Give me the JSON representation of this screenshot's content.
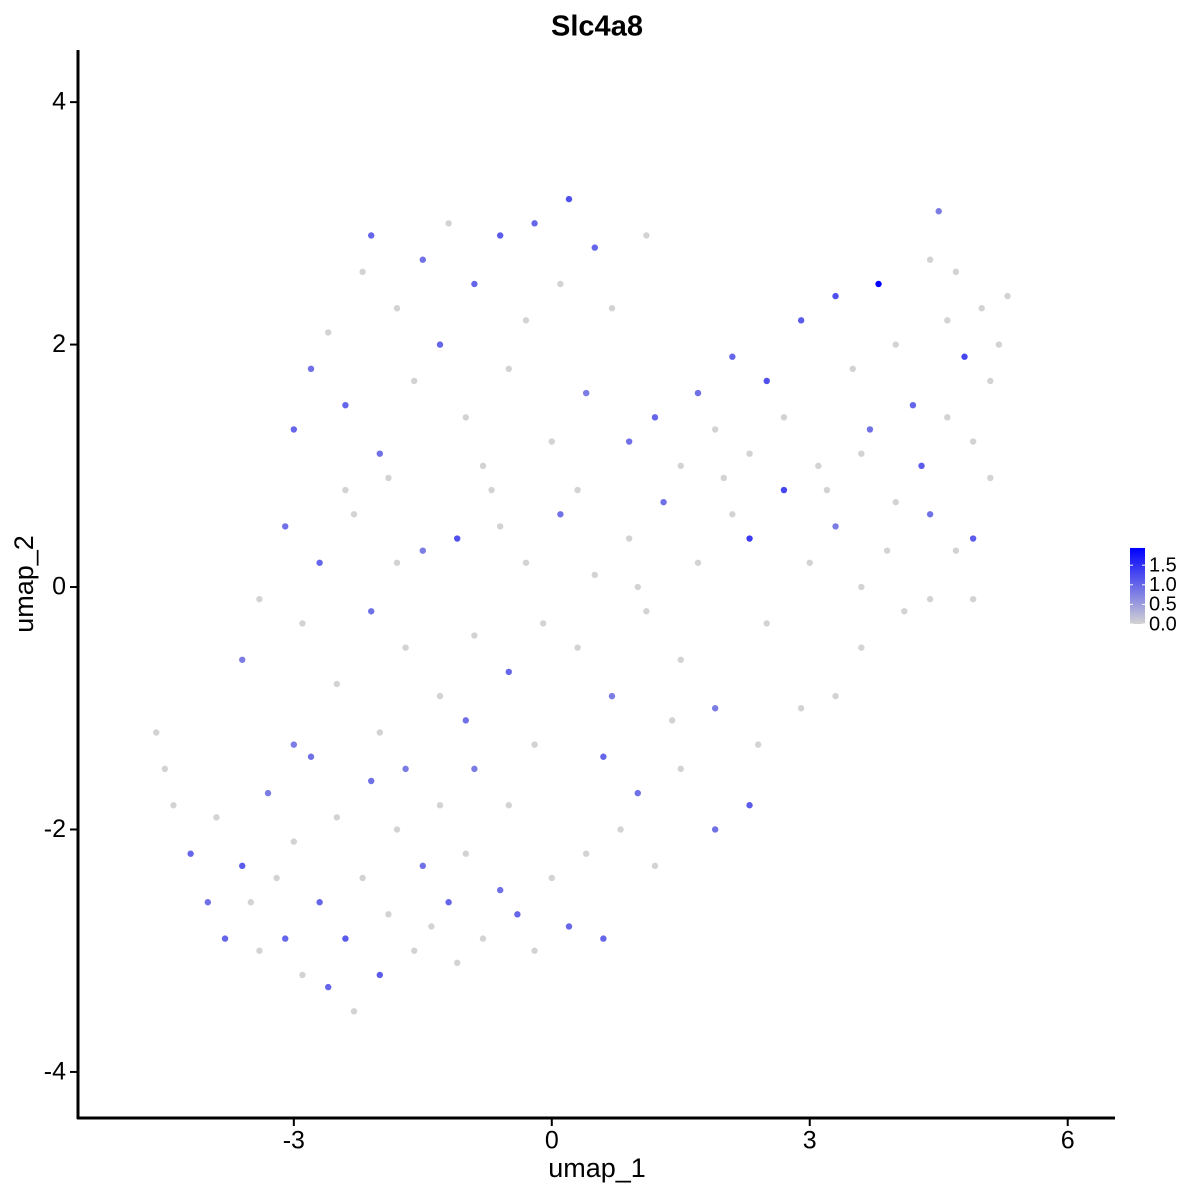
{
  "chart_data": {
    "type": "scatter",
    "title": "Slc4a8",
    "x_label": "umap_1",
    "y_label": "umap_2",
    "x": [
      -4.6,
      -4.5,
      -4.4,
      -4.2,
      -4.0,
      -3.9,
      -3.8,
      -3.6,
      -3.5,
      -3.4,
      -3.3,
      -3.2,
      -3.1,
      -3.0,
      -2.9,
      -2.8,
      -2.7,
      -2.6,
      -2.5,
      -2.4,
      -2.3,
      -2.2,
      -2.1,
      -2.0,
      -1.9,
      -1.8,
      -1.7,
      -1.6,
      -1.5,
      -1.4,
      -1.3,
      -1.2,
      -1.1,
      -1.0,
      -0.9,
      -0.8,
      -0.6,
      -0.5,
      -0.4,
      -0.2,
      0.0,
      0.2,
      0.4,
      0.6,
      0.8,
      1.0,
      1.2,
      1.5,
      1.9,
      2.3,
      2.4,
      2.9,
      3.3,
      3.6,
      -3.6,
      -3.4,
      -3.1,
      -2.9,
      -2.7,
      -2.5,
      -2.3,
      -2.1,
      -1.9,
      -1.7,
      -1.5,
      -1.3,
      -1.1,
      -0.9,
      -0.7,
      -0.5,
      -0.3,
      -0.1,
      0.1,
      0.3,
      0.5,
      0.7,
      0.9,
      1.1,
      1.3,
      1.5,
      1.7,
      1.9,
      2.1,
      2.3,
      2.5,
      2.7,
      3.0,
      3.3,
      3.6,
      3.9,
      4.1,
      4.4,
      4.7,
      4.9,
      4.4,
      -0.2,
      -1.0,
      -2.0,
      0.6,
      1.4,
      -3.0,
      -3.0,
      -2.8,
      -2.6,
      -2.4,
      -2.2,
      -2.1,
      -2.0,
      -1.8,
      -1.6,
      -1.5,
      -1.3,
      -1.2,
      -1.0,
      -0.9,
      -0.8,
      -0.6,
      -0.5,
      -0.3,
      -0.2,
      0.0,
      0.2,
      0.1,
      0.4,
      0.5,
      0.7,
      0.9,
      1.1,
      0.3,
      -0.6,
      -2.4,
      -1.8,
      1.2,
      1.5,
      1.7,
      1.9,
      2.1,
      2.3,
      2.5,
      2.7,
      2.9,
      3.1,
      3.3,
      3.5,
      3.7,
      3.8,
      4.0,
      4.2,
      4.4,
      4.5,
      4.6,
      4.7,
      4.8,
      4.9,
      5.0,
      5.1,
      5.2,
      5.3,
      5.1,
      4.9,
      4.6,
      4.3,
      4.0,
      3.6,
      3.2,
      2.0,
      1.0
    ],
    "y": [
      -1.2,
      -1.5,
      -1.8,
      -2.2,
      -2.6,
      -1.9,
      -2.9,
      -2.3,
      -2.6,
      -3.0,
      -1.7,
      -2.4,
      -2.9,
      -2.1,
      -3.2,
      -1.4,
      -2.6,
      -3.3,
      -1.9,
      -2.9,
      -3.5,
      -2.4,
      -1.6,
      -3.2,
      -2.7,
      -2.0,
      -1.5,
      -3.0,
      -2.3,
      -2.8,
      -1.8,
      -2.6,
      -3.1,
      -2.2,
      -1.5,
      -2.9,
      -2.5,
      -1.8,
      -2.7,
      -3.0,
      -2.4,
      -2.8,
      -2.2,
      -2.9,
      -2.0,
      -1.7,
      -2.3,
      -1.5,
      -2.0,
      -1.8,
      -1.3,
      -1.0,
      -0.9,
      -0.5,
      -0.6,
      -0.1,
      0.5,
      -0.3,
      0.2,
      -0.8,
      0.6,
      -0.2,
      0.9,
      -0.5,
      0.3,
      -0.9,
      0.4,
      -0.4,
      0.8,
      -0.7,
      0.2,
      -0.3,
      0.6,
      -0.5,
      0.1,
      -0.9,
      0.4,
      -0.2,
      0.7,
      -0.6,
      0.2,
      -1.0,
      0.6,
      0.4,
      -0.3,
      0.8,
      0.2,
      0.5,
      0.0,
      0.3,
      -0.2,
      0.6,
      0.3,
      -0.1,
      -0.1,
      -1.3,
      -1.1,
      -1.2,
      -1.4,
      -1.1,
      -1.3,
      1.3,
      1.8,
      2.1,
      1.5,
      2.6,
      2.9,
      1.1,
      2.3,
      1.7,
      2.7,
      2.0,
      3.0,
      1.4,
      2.5,
      1.0,
      2.9,
      1.8,
      2.2,
      3.0,
      1.2,
      3.2,
      2.5,
      1.6,
      2.8,
      2.3,
      1.2,
      2.9,
      0.8,
      0.5,
      0.8,
      0.2,
      1.4,
      1.0,
      1.6,
      1.3,
      1.9,
      1.1,
      1.7,
      1.4,
      2.2,
      1.0,
      2.4,
      1.8,
      1.3,
      2.5,
      2.0,
      1.5,
      2.7,
      3.1,
      2.2,
      2.6,
      1.9,
      1.2,
      2.3,
      1.7,
      2.0,
      2.4,
      0.9,
      0.4,
      1.4,
      1.0,
      0.7,
      1.1,
      0.8,
      0.9,
      0.0
    ],
    "values": [
      0,
      0,
      0,
      1.0,
      0.9,
      0,
      1.0,
      1.1,
      0,
      0,
      0.8,
      0,
      1.0,
      0,
      0,
      0.9,
      1.0,
      1.0,
      0,
      1.1,
      0,
      0,
      0.9,
      1.1,
      0,
      0,
      0.8,
      0,
      0.9,
      0,
      0,
      1.0,
      0,
      0,
      0.8,
      0,
      0.9,
      0,
      1.0,
      0,
      0,
      1.0,
      0,
      1.0,
      0,
      0.9,
      0,
      0,
      0.9,
      1.1,
      0,
      0,
      0,
      0,
      0.8,
      0,
      0.9,
      0,
      1.0,
      0,
      0,
      0.9,
      0,
      0,
      0.8,
      0,
      1.2,
      0,
      0,
      1.0,
      0,
      0,
      0.9,
      0,
      0,
      0.8,
      0,
      0,
      0.9,
      0,
      0,
      0.8,
      0,
      1.4,
      0,
      1.3,
      0,
      0.8,
      0,
      0,
      0,
      0.9,
      0,
      0,
      0,
      0,
      0.9,
      0,
      1.0,
      0,
      0.8,
      1.0,
      0.9,
      0,
      1.0,
      0,
      1.0,
      0.9,
      0,
      0,
      0.9,
      1.0,
      0,
      0,
      1.0,
      0,
      1.1,
      0,
      0,
      1.0,
      0,
      1.2,
      0,
      0.8,
      1.0,
      0,
      0.9,
      0,
      0,
      0,
      0,
      0,
      1.0,
      0,
      0.9,
      0,
      1.0,
      0,
      1.2,
      0,
      1.1,
      0,
      1.2,
      0,
      0.9,
      1.9,
      0,
      1.0,
      0,
      0.8,
      0,
      0,
      1.3,
      0,
      0,
      0,
      0,
      0,
      0,
      1.1,
      0,
      1.1,
      0,
      0,
      0,
      0,
      0
    ],
    "xlim": [
      -5.51,
      6.55
    ],
    "ylim": [
      -4.38,
      4.43
    ],
    "xticks": [
      -3,
      0,
      3,
      6
    ],
    "yticks": [
      -4,
      -2,
      0,
      2,
      4
    ],
    "low_color": "#d3d3d3",
    "high_color": "#0000ff",
    "clim": [
      0,
      1.94
    ],
    "cticks": [
      {
        "value": 0,
        "label": "0.0"
      },
      {
        "value": 0.5,
        "label": "0.5"
      },
      {
        "value": 1,
        "label": "1.0"
      },
      {
        "value": 1.5,
        "label": "1.5"
      }
    ]
  }
}
